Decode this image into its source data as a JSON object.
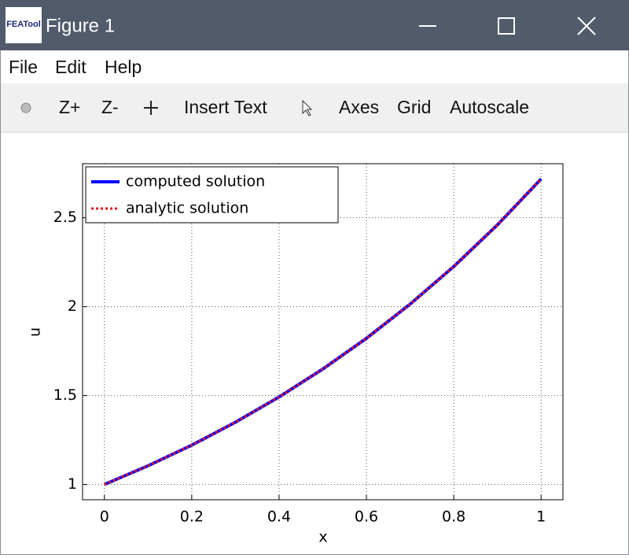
{
  "window": {
    "icon_text": "FEATool",
    "title": "Figure 1"
  },
  "menu": [
    "File",
    "Edit",
    "Help"
  ],
  "toolbar": [
    "Z+",
    "Z-",
    "Insert Text",
    "Axes",
    "Grid",
    "Autoscale"
  ],
  "chart_data": {
    "type": "line",
    "x_label": "x",
    "y_label": "u",
    "x": [
      0,
      0.1,
      0.2,
      0.3,
      0.4,
      0.5,
      0.6,
      0.7,
      0.8,
      0.9,
      1
    ],
    "series": [
      {
        "name": "computed solution",
        "color": "#0000ff",
        "style": "solid",
        "values": [
          1,
          1.105,
          1.221,
          1.35,
          1.492,
          1.649,
          1.822,
          2.014,
          2.226,
          2.46,
          2.718
        ]
      },
      {
        "name": "analytic solution",
        "color": "#e8141e",
        "style": "dotted",
        "values": [
          1,
          1.105,
          1.221,
          1.35,
          1.492,
          1.649,
          1.822,
          2.014,
          2.226,
          2.46,
          2.718
        ]
      }
    ],
    "xlim": [
      -0.05,
      1.05
    ],
    "ylim": [
      0.914,
      2.804
    ],
    "xticks": [
      0,
      0.2,
      0.4,
      0.6,
      0.8,
      1
    ],
    "yticks": [
      1,
      1.5,
      2,
      2.5
    ],
    "grid": true,
    "legend": "upper-left"
  }
}
